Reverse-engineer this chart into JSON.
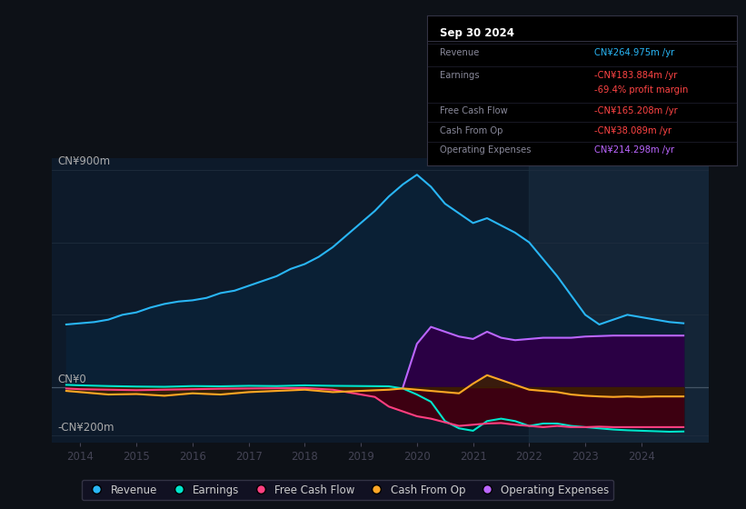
{
  "bg_color": "#0d1117",
  "plot_bg_color": "#0d1a2a",
  "title": "Sep 30 2024",
  "ylabel_top": "CN¥900m",
  "ylabel_zero": "CN¥0",
  "ylabel_bottom": "-CN¥200m",
  "xlim": [
    2013.5,
    2025.2
  ],
  "ylim": [
    -230,
    950
  ],
  "xticks": [
    2014,
    2015,
    2016,
    2017,
    2018,
    2019,
    2020,
    2021,
    2022,
    2023,
    2024
  ],
  "highlight_x_start": 2022.0,
  "revenue": {
    "x": [
      2013.75,
      2014.0,
      2014.25,
      2014.5,
      2014.75,
      2015.0,
      2015.25,
      2015.5,
      2015.75,
      2016.0,
      2016.25,
      2016.5,
      2016.75,
      2017.0,
      2017.25,
      2017.5,
      2017.75,
      2018.0,
      2018.25,
      2018.5,
      2018.75,
      2019.0,
      2019.25,
      2019.5,
      2019.75,
      2020.0,
      2020.25,
      2020.5,
      2020.75,
      2021.0,
      2021.25,
      2021.5,
      2021.75,
      2022.0,
      2022.25,
      2022.5,
      2022.75,
      2023.0,
      2023.25,
      2023.5,
      2023.75,
      2024.0,
      2024.25,
      2024.5,
      2024.75
    ],
    "y": [
      260,
      265,
      270,
      280,
      300,
      310,
      330,
      345,
      355,
      360,
      370,
      390,
      400,
      420,
      440,
      460,
      490,
      510,
      540,
      580,
      630,
      680,
      730,
      790,
      840,
      880,
      830,
      760,
      720,
      680,
      700,
      670,
      640,
      600,
      530,
      460,
      380,
      300,
      260,
      280,
      300,
      290,
      280,
      270,
      265
    ],
    "color": "#29b6f6",
    "fill_color": "#0a2035",
    "label": "Revenue"
  },
  "earnings": {
    "x": [
      2013.75,
      2014.0,
      2014.5,
      2015.0,
      2015.5,
      2016.0,
      2016.5,
      2017.0,
      2017.5,
      2018.0,
      2018.5,
      2019.0,
      2019.5,
      2019.75,
      2020.0,
      2020.25,
      2020.5,
      2020.75,
      2021.0,
      2021.25,
      2021.5,
      2021.75,
      2022.0,
      2022.25,
      2022.5,
      2022.75,
      2023.0,
      2023.25,
      2023.5,
      2023.75,
      2024.0,
      2024.25,
      2024.5,
      2024.75
    ],
    "y": [
      10,
      8,
      5,
      3,
      2,
      5,
      4,
      6,
      5,
      8,
      6,
      5,
      4,
      -5,
      -30,
      -60,
      -140,
      -170,
      -180,
      -140,
      -130,
      -140,
      -160,
      -150,
      -150,
      -160,
      -165,
      -170,
      -175,
      -178,
      -180,
      -182,
      -184,
      -183
    ],
    "color": "#00e5cc",
    "fill_color": "#001a22",
    "label": "Earnings"
  },
  "free_cash_flow": {
    "x": [
      2013.75,
      2014.0,
      2014.5,
      2015.0,
      2015.5,
      2016.0,
      2016.5,
      2017.0,
      2017.5,
      2018.0,
      2018.5,
      2018.75,
      2019.0,
      2019.25,
      2019.5,
      2019.75,
      2020.0,
      2020.25,
      2020.5,
      2020.75,
      2021.0,
      2021.25,
      2021.5,
      2021.75,
      2022.0,
      2022.25,
      2022.5,
      2022.75,
      2023.0,
      2023.25,
      2023.5,
      2023.75,
      2024.0,
      2024.25,
      2024.5,
      2024.75
    ],
    "y": [
      -5,
      -8,
      -10,
      -12,
      -10,
      -8,
      -6,
      -5,
      -4,
      -3,
      -10,
      -20,
      -30,
      -40,
      -80,
      -100,
      -120,
      -130,
      -145,
      -160,
      -155,
      -150,
      -148,
      -155,
      -160,
      -165,
      -160,
      -165,
      -165,
      -163,
      -165,
      -165,
      -165,
      -165,
      -165,
      -165
    ],
    "color": "#ff4081",
    "fill_color": "#3d0011",
    "label": "Free Cash Flow"
  },
  "cash_from_op": {
    "x": [
      2013.75,
      2014.0,
      2014.5,
      2015.0,
      2015.5,
      2016.0,
      2016.5,
      2017.0,
      2017.5,
      2018.0,
      2018.5,
      2019.0,
      2019.5,
      2019.75,
      2020.0,
      2020.25,
      2020.5,
      2020.75,
      2021.0,
      2021.25,
      2021.5,
      2021.75,
      2022.0,
      2022.25,
      2022.5,
      2022.75,
      2023.0,
      2023.25,
      2023.5,
      2023.75,
      2024.0,
      2024.25,
      2024.5,
      2024.75
    ],
    "y": [
      -15,
      -20,
      -30,
      -28,
      -35,
      -25,
      -30,
      -20,
      -15,
      -10,
      -20,
      -15,
      -10,
      -5,
      -10,
      -15,
      -20,
      -25,
      15,
      50,
      30,
      10,
      -10,
      -15,
      -20,
      -30,
      -35,
      -38,
      -40,
      -38,
      -40,
      -38,
      -38,
      -38
    ],
    "color": "#ffa726",
    "fill_color": "#3d2200",
    "label": "Cash From Op"
  },
  "op_expenses": {
    "x": [
      2019.75,
      2020.0,
      2020.25,
      2020.5,
      2020.75,
      2021.0,
      2021.25,
      2021.5,
      2021.75,
      2022.0,
      2022.25,
      2022.5,
      2022.75,
      2023.0,
      2023.25,
      2023.5,
      2023.75,
      2024.0,
      2024.25,
      2024.5,
      2024.75
    ],
    "y": [
      0,
      180,
      250,
      230,
      210,
      200,
      230,
      205,
      195,
      200,
      205,
      205,
      205,
      210,
      212,
      214,
      214,
      214,
      214,
      214,
      214
    ],
    "color": "#bb66ff",
    "fill_color": "#2a0044",
    "label": "Operating Expenses"
  },
  "legend": [
    {
      "label": "Revenue",
      "color": "#29b6f6"
    },
    {
      "label": "Earnings",
      "color": "#00e5cc"
    },
    {
      "label": "Free Cash Flow",
      "color": "#ff4081"
    },
    {
      "label": "Cash From Op",
      "color": "#ffa726"
    },
    {
      "label": "Operating Expenses",
      "color": "#bb66ff"
    }
  ],
  "info_rows": [
    {
      "label": "Revenue",
      "value": "CN¥264.975m /yr",
      "value_color": "#29b6f6"
    },
    {
      "label": "Earnings",
      "value": "-CN¥183.884m /yr",
      "value_color": "#ff4444"
    },
    {
      "label": "",
      "value": "-69.4% profit margin",
      "value_color": "#ff4444"
    },
    {
      "label": "Free Cash Flow",
      "value": "-CN¥165.208m /yr",
      "value_color": "#ff4444"
    },
    {
      "label": "Cash From Op",
      "value": "-CN¥38.089m /yr",
      "value_color": "#ff4444"
    },
    {
      "label": "Operating Expenses",
      "value": "CN¥214.298m /yr",
      "value_color": "#bb66ff"
    }
  ]
}
